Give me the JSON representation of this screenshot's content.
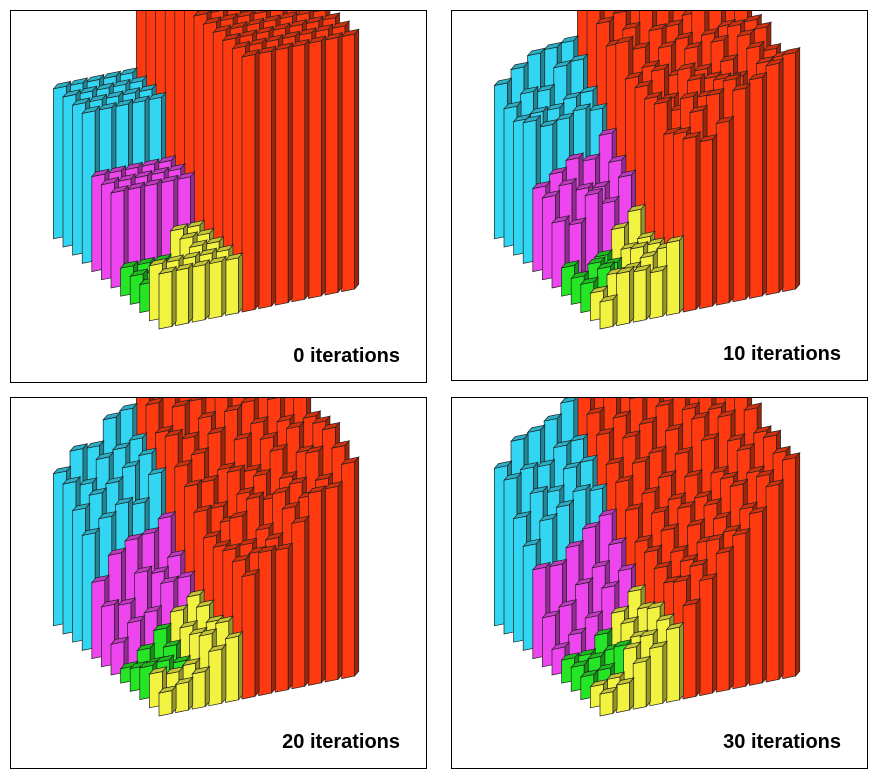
{
  "colors": {
    "cyan": "#33d6f2",
    "magenta": "#ee46ee",
    "red": "#ff3a10",
    "yellow": "#f2f240",
    "green": "#24e624"
  },
  "panels": [
    {
      "caption": "0 iterations",
      "iterations": 0
    },
    {
      "caption": "10 iterations",
      "iterations": 10
    },
    {
      "caption": "20 iterations",
      "iterations": 20
    },
    {
      "caption": "30 iterations",
      "iterations": 30
    }
  ]
}
